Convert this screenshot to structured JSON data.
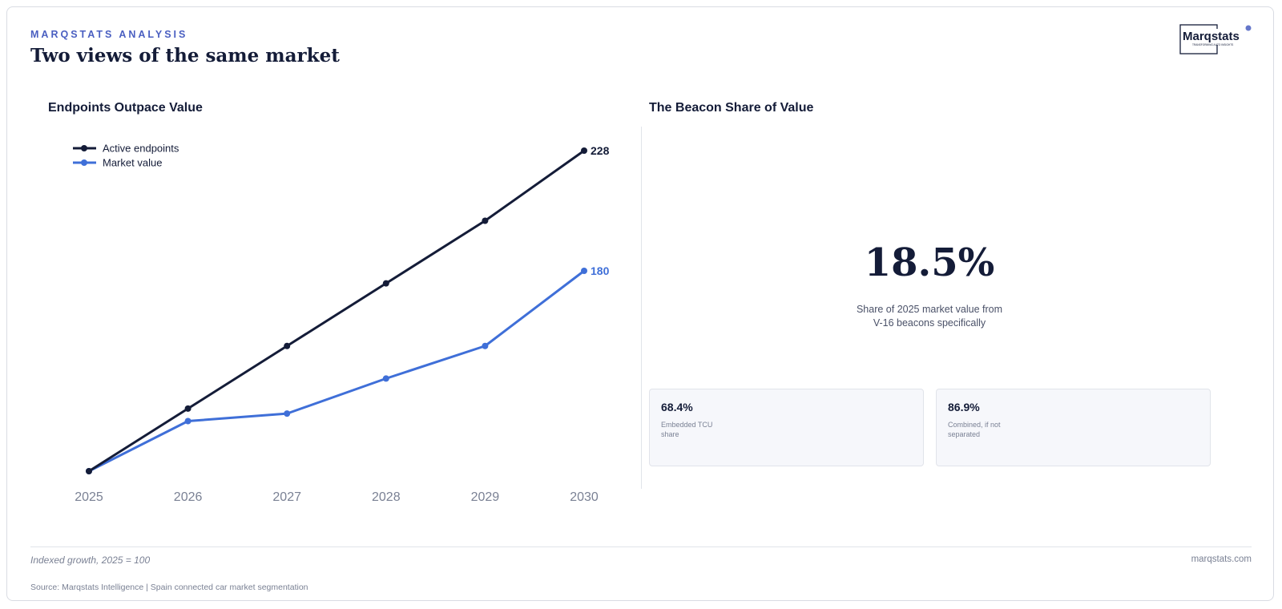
{
  "header": {
    "eyebrow": "MARQSTATS ANALYSIS",
    "title": "Two views of the same market",
    "logo_text": "Marqstats",
    "logo_tagline": "TRANSFORMING AUTO INSIGHTS"
  },
  "left_panel": {
    "title": "Endpoints Outpace Value"
  },
  "right_panel": {
    "title": "The Beacon Share of Value",
    "big_stat": "18.5%",
    "big_stat_desc_line1": "Share of 2025 market value from",
    "big_stat_desc_line2": "V-16 beacons specifically",
    "cards": [
      {
        "value": "68.4%",
        "label": "Embedded TCU share"
      },
      {
        "value": "86.9%",
        "label": "Combined, if not separated"
      }
    ]
  },
  "chart_data": {
    "type": "line",
    "title": "Endpoints Outpace Value",
    "x": [
      "2025",
      "2026",
      "2027",
      "2028",
      "2029",
      "2030"
    ],
    "ylim": [
      100,
      228
    ],
    "grid": false,
    "legend_position": "top-left",
    "series": [
      {
        "name": "Active endpoints",
        "values": [
          100,
          125,
          150,
          175,
          200,
          228
        ],
        "color": "#141c38",
        "end_label": "228"
      },
      {
        "name": "Market value",
        "values": [
          100,
          120,
          123,
          137,
          150,
          180
        ],
        "color": "#3f6fd8",
        "end_label": "180"
      }
    ]
  },
  "footer": {
    "note": "Indexed growth, 2025 = 100",
    "site": "marqstats.com",
    "source": "Source: Marqstats Intelligence | Spain connected car market segmentation"
  },
  "colors": {
    "accent": "#4a5fc1",
    "navy": "#141c38",
    "blue": "#3f6fd8"
  }
}
